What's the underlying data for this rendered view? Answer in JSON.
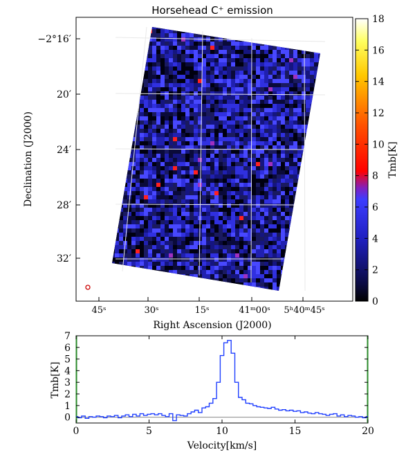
{
  "chart_data": [
    {
      "type": "heatmap",
      "title": "Horsehead C⁺ emission",
      "xlabel": "Right Ascension (J2000)",
      "ylabel": "Declination (J2000)",
      "x_tick_labels": [
        "45ˢ",
        "30ˢ",
        "15ˢ",
        "41ᵐ00ˢ",
        "5ʰ40ᵐ45ˢ"
      ],
      "y_tick_labels": [
        "−2°16′",
        "20′",
        "24′",
        "28′",
        "32′"
      ],
      "colorbar": {
        "label": "Tmb[K]",
        "range": [
          0,
          18
        ],
        "ticks": [
          0,
          2,
          4,
          6,
          8,
          10,
          12,
          14,
          16,
          18
        ],
        "tick_labels": [
          "0",
          "2",
          "4",
          "6",
          "8",
          "10",
          "12",
          "14",
          "16",
          "18"
        ],
        "colormap": "gist_stern-like (black → blue → red → yellow → white)"
      },
      "grid": true,
      "beam_marker_color": "#cc0000",
      "map_background": "#0a0a2a"
    },
    {
      "type": "line",
      "xlabel": "Velocity[km/s]",
      "ylabel": "Tmb[K]",
      "xlim": [
        0,
        20
      ],
      "ylim": [
        -0.5,
        7
      ],
      "x_ticks": [
        0,
        5,
        10,
        15,
        20
      ],
      "x_tick_labels": [
        "0",
        "5",
        "10",
        "15",
        "20"
      ],
      "y_ticks": [
        0,
        1,
        2,
        3,
        4,
        5,
        6,
        7
      ],
      "y_tick_labels": [
        "0",
        "1",
        "2",
        "3",
        "4",
        "5",
        "6",
        "7"
      ],
      "drawstyle": "steps",
      "line_color": "#1f3fff",
      "zero_line_color": "#888888",
      "x": [
        0.0,
        0.25,
        0.5,
        0.75,
        1.0,
        1.25,
        1.5,
        1.75,
        2.0,
        2.25,
        2.5,
        2.75,
        3.0,
        3.25,
        3.5,
        3.75,
        4.0,
        4.25,
        4.5,
        4.75,
        5.0,
        5.25,
        5.5,
        5.75,
        6.0,
        6.25,
        6.5,
        6.75,
        7.0,
        7.25,
        7.5,
        7.75,
        8.0,
        8.25,
        8.5,
        8.75,
        9.0,
        9.25,
        9.5,
        9.75,
        10.0,
        10.25,
        10.5,
        10.75,
        11.0,
        11.25,
        11.5,
        11.75,
        12.0,
        12.25,
        12.5,
        12.75,
        13.0,
        13.25,
        13.5,
        13.75,
        14.0,
        14.25,
        14.5,
        14.75,
        15.0,
        15.25,
        15.5,
        15.75,
        16.0,
        16.25,
        16.5,
        16.75,
        17.0,
        17.25,
        17.5,
        17.75,
        18.0,
        18.25,
        18.5,
        18.75,
        19.0,
        19.25,
        19.5,
        19.75,
        20.0
      ],
      "y": [
        0.05,
        -0.05,
        0.1,
        -0.1,
        0.05,
        0.0,
        0.1,
        0.05,
        -0.05,
        0.1,
        0.05,
        0.15,
        -0.05,
        0.1,
        0.2,
        0.05,
        0.25,
        0.1,
        0.3,
        0.15,
        0.25,
        0.3,
        0.2,
        0.3,
        0.15,
        0.05,
        0.3,
        -0.3,
        0.2,
        0.15,
        0.1,
        0.3,
        0.45,
        0.6,
        0.4,
        0.8,
        0.9,
        1.2,
        1.6,
        3.0,
        5.3,
        6.4,
        6.6,
        5.5,
        3.0,
        1.7,
        1.5,
        1.2,
        1.15,
        1.0,
        0.9,
        0.85,
        0.8,
        0.75,
        0.85,
        0.7,
        0.6,
        0.65,
        0.55,
        0.6,
        0.5,
        0.55,
        0.4,
        0.45,
        0.35,
        0.3,
        0.4,
        0.3,
        0.25,
        0.15,
        0.25,
        0.3,
        0.1,
        0.2,
        0.05,
        0.15,
        0.1,
        0.0,
        0.05,
        -0.05,
        0.05
      ]
    }
  ]
}
